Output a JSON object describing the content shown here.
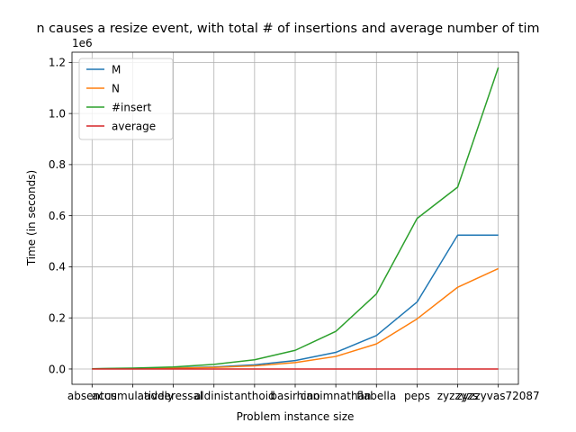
{
  "chart_data": {
    "type": "line",
    "title": "n causes a resize event, with total # of insertions and average number of tim",
    "xlabel": "Problem instance size",
    "ylabel": "Time (in seconds)",
    "y_scale_label": "1e6",
    "categories": [
      "absentus",
      "accumulatively",
      "adderessal",
      "aldinist",
      "anthoid",
      "basirhino",
      "canimnathan",
      "flabella",
      "peps",
      "zyzzyzs",
      "zyzzyvas72087"
    ],
    "ylim": [
      -0.06,
      1.24
    ],
    "y_ticks": [
      0.0,
      0.2,
      0.4,
      0.6,
      0.8,
      1.0,
      1.2
    ],
    "y_tick_labels": [
      "0.0",
      "0.2",
      "0.4",
      "0.6",
      "0.8",
      "1.0",
      "1.2"
    ],
    "grid": true,
    "legend_position": "top-left",
    "series": [
      {
        "name": "M",
        "color": "#1f77b4",
        "values": [
          0.001,
          0.002,
          0.004,
          0.008,
          0.016,
          0.033,
          0.065,
          0.131,
          0.262,
          0.524,
          0.524
        ]
      },
      {
        "name": "N",
        "color": "#ff7f0e",
        "values": [
          0.0007,
          0.0015,
          0.003,
          0.006,
          0.012,
          0.025,
          0.049,
          0.098,
          0.196,
          0.32,
          0.393
        ]
      },
      {
        "name": "#insert",
        "color": "#2ca02c",
        "values": [
          0.001,
          0.0035,
          0.008,
          0.018,
          0.036,
          0.073,
          0.147,
          0.294,
          0.589,
          0.712,
          1.18
        ]
      },
      {
        "name": "average",
        "color": "#d62728",
        "values": [
          0,
          0,
          0,
          0,
          0,
          0,
          0,
          0,
          0,
          0,
          0
        ]
      }
    ]
  }
}
